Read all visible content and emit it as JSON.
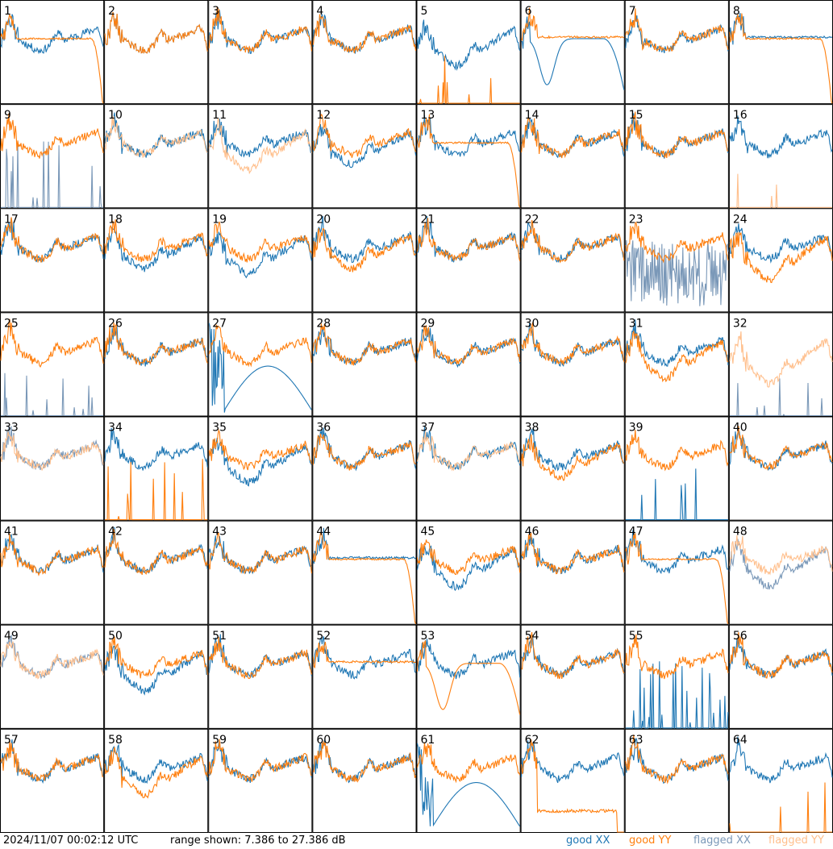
{
  "footer": {
    "timestamp": "2024/11/07 00:02:12 UTC",
    "range_text": "range shown: 7.386 to 27.386 dB"
  },
  "legend": [
    {
      "id": "good_xx",
      "label": "good XX",
      "color": "#1f77b4"
    },
    {
      "id": "good_yy",
      "label": "good YY",
      "color": "#ff7f0e"
    },
    {
      "id": "flagged_xx",
      "label": "flagged XX",
      "color": "#7a98b8"
    },
    {
      "id": "flagged_yy",
      "label": "flagged YY",
      "color": "#ffbf8c"
    }
  ],
  "chart_data": {
    "type": "line",
    "layout": "small-multiples 8x8",
    "ylim": [
      7.386,
      27.386
    ],
    "yunit": "dB",
    "panels": [
      {
        "label": "1",
        "xx": "good",
        "yy": "good",
        "yy_pattern": "rolloff",
        "xx_offset": 0
      },
      {
        "label": "2",
        "xx": "good",
        "yy": "good"
      },
      {
        "label": "3",
        "xx": "good",
        "yy": "good"
      },
      {
        "label": "4",
        "xx": "good",
        "yy": "good"
      },
      {
        "label": "5",
        "xx": "good",
        "yy": "good",
        "yy_pattern": "dead",
        "xx_offset": -3
      },
      {
        "label": "6",
        "xx": "good",
        "yy": "good",
        "xx_pattern": "dip",
        "yy_pattern": "flat"
      },
      {
        "label": "7",
        "xx": "good",
        "yy": "good"
      },
      {
        "label": "8",
        "xx": "good",
        "yy": "good",
        "yy_pattern": "rolloff",
        "xx_pattern": "flat"
      },
      {
        "label": "9",
        "xx": "flagged",
        "yy": "good",
        "xx_pattern": "spikes"
      },
      {
        "label": "10",
        "xx": "good",
        "yy": "flagged"
      },
      {
        "label": "11",
        "xx": "good",
        "yy": "flagged",
        "yy_offset": -3
      },
      {
        "label": "12",
        "xx": "good",
        "yy": "good",
        "xx_offset": -2
      },
      {
        "label": "13",
        "xx": "good",
        "yy": "good",
        "yy_pattern": "rolloff"
      },
      {
        "label": "14",
        "xx": "good",
        "yy": "good"
      },
      {
        "label": "15",
        "xx": "good",
        "yy": "good"
      },
      {
        "label": "16",
        "xx": "good",
        "yy": "flagged",
        "yy_pattern": "dead"
      },
      {
        "label": "17",
        "xx": "good",
        "yy": "good"
      },
      {
        "label": "18",
        "xx": "good",
        "yy": "good",
        "xx_offset": -2
      },
      {
        "label": "19",
        "xx": "good",
        "yy": "good",
        "xx_offset": -3
      },
      {
        "label": "20",
        "xx": "good",
        "yy": "good",
        "yy_offset": -2
      },
      {
        "label": "21",
        "xx": "good",
        "yy": "good"
      },
      {
        "label": "22",
        "xx": "good",
        "yy": "good"
      },
      {
        "label": "23",
        "xx": "flagged",
        "yy": "good",
        "xx_pattern": "noise"
      },
      {
        "label": "24",
        "xx": "good",
        "yy": "good",
        "yy_offset": -4
      },
      {
        "label": "25",
        "xx": "flagged",
        "yy": "good",
        "xx_pattern": "dead"
      },
      {
        "label": "26",
        "xx": "good",
        "yy": "good"
      },
      {
        "label": "27",
        "xx": "good",
        "yy": "good",
        "xx_pattern": "arch"
      },
      {
        "label": "28",
        "xx": "good",
        "yy": "good"
      },
      {
        "label": "29",
        "xx": "good",
        "yy": "good"
      },
      {
        "label": "30",
        "xx": "good",
        "yy": "good"
      },
      {
        "label": "31",
        "xx": "good",
        "yy": "good",
        "yy_offset": -3
      },
      {
        "label": "32",
        "xx": "flagged",
        "yy": "flagged",
        "xx_pattern": "dead",
        "yy_offset": -4
      },
      {
        "label": "33",
        "xx": "flagged",
        "yy": "flagged"
      },
      {
        "label": "34",
        "xx": "good",
        "yy": "good",
        "yy_pattern": "spikes"
      },
      {
        "label": "35",
        "xx": "good",
        "yy": "good",
        "xx_offset": -3
      },
      {
        "label": "36",
        "xx": "good",
        "yy": "good"
      },
      {
        "label": "37",
        "xx": "good",
        "yy": "flagged"
      },
      {
        "label": "38",
        "xx": "good",
        "yy": "good",
        "yy_offset": -2
      },
      {
        "label": "39",
        "xx": "good",
        "yy": "good",
        "xx_pattern": "dead"
      },
      {
        "label": "40",
        "xx": "good",
        "yy": "good"
      },
      {
        "label": "41",
        "xx": "good",
        "yy": "good"
      },
      {
        "label": "42",
        "xx": "good",
        "yy": "good"
      },
      {
        "label": "43",
        "xx": "good",
        "yy": "good"
      },
      {
        "label": "44",
        "xx": "good",
        "yy": "good",
        "yy_pattern": "rolloff",
        "xx_pattern": "flat"
      },
      {
        "label": "45",
        "xx": "good",
        "yy": "good",
        "xx_offset": -3
      },
      {
        "label": "46",
        "xx": "good",
        "yy": "good"
      },
      {
        "label": "47",
        "xx": "good",
        "yy": "good",
        "yy_pattern": "rolloff"
      },
      {
        "label": "48",
        "xx": "flagged",
        "yy": "flagged",
        "xx_offset": -3
      },
      {
        "label": "49",
        "xx": "flagged",
        "yy": "flagged"
      },
      {
        "label": "50",
        "xx": "good",
        "yy": "good",
        "xx_offset": -3
      },
      {
        "label": "51",
        "xx": "good",
        "yy": "good"
      },
      {
        "label": "52",
        "xx": "good",
        "yy": "good",
        "yy_pattern": "flat"
      },
      {
        "label": "53",
        "xx": "good",
        "yy": "good",
        "yy_pattern": "dip"
      },
      {
        "label": "54",
        "xx": "good",
        "yy": "good"
      },
      {
        "label": "55",
        "xx": "good",
        "yy": "good",
        "xx_pattern": "spikes"
      },
      {
        "label": "56",
        "xx": "good",
        "yy": "good"
      },
      {
        "label": "57",
        "xx": "good",
        "yy": "good"
      },
      {
        "label": "58",
        "xx": "good",
        "yy": "good",
        "yy_offset": -3
      },
      {
        "label": "59",
        "xx": "good",
        "yy": "good"
      },
      {
        "label": "60",
        "xx": "good",
        "yy": "good"
      },
      {
        "label": "61",
        "xx": "good",
        "yy": "good",
        "xx_pattern": "arch"
      },
      {
        "label": "62",
        "xx": "good",
        "yy": "good",
        "yy_pattern": "lowflat"
      },
      {
        "label": "63",
        "xx": "good",
        "yy": "good"
      },
      {
        "label": "64",
        "xx": "good",
        "yy": "good",
        "yy_pattern": "dead"
      }
    ]
  }
}
